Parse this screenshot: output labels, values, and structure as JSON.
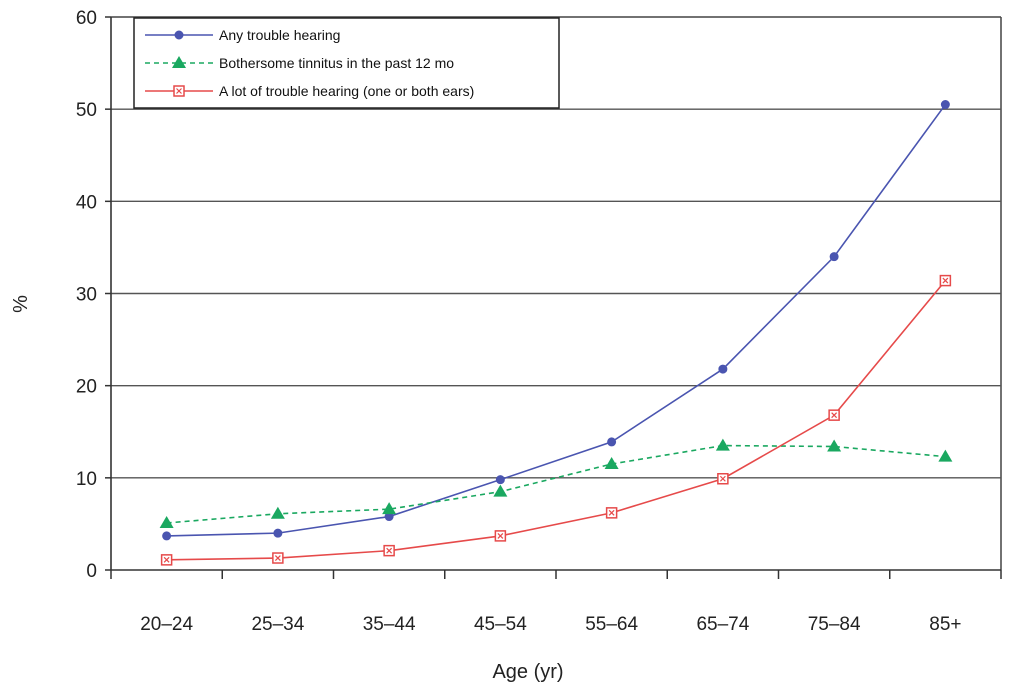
{
  "chart_data": {
    "type": "line",
    "xlabel": "Age (yr)",
    "ylabel": "%",
    "ylim": [
      0,
      60
    ],
    "yticks": [
      0,
      10,
      20,
      30,
      40,
      50,
      60
    ],
    "grid": "horizontal",
    "legend_position": "top-left",
    "categories": [
      "20–24",
      "25–34",
      "35–44",
      "45–54",
      "55–64",
      "65–74",
      "75–84",
      "85+"
    ],
    "series": [
      {
        "name": "Any trouble hearing",
        "values": [
          3.7,
          4.0,
          5.8,
          9.8,
          13.9,
          21.8,
          34.0,
          50.5
        ],
        "color": "#4a55b0",
        "marker": "circle",
        "line": "solid"
      },
      {
        "name": "Bothersome tinnitus in the past 12 mo",
        "values": [
          5.1,
          6.1,
          6.6,
          8.5,
          11.5,
          13.5,
          13.4,
          12.3
        ],
        "color": "#1aa860",
        "marker": "triangle",
        "line": "dashed"
      },
      {
        "name": "A lot of trouble hearing (one or both ears)",
        "values": [
          1.1,
          1.3,
          2.1,
          3.7,
          6.2,
          9.9,
          16.8,
          31.4
        ],
        "color": "#e64a4a",
        "marker": "square",
        "line": "solid"
      }
    ]
  }
}
